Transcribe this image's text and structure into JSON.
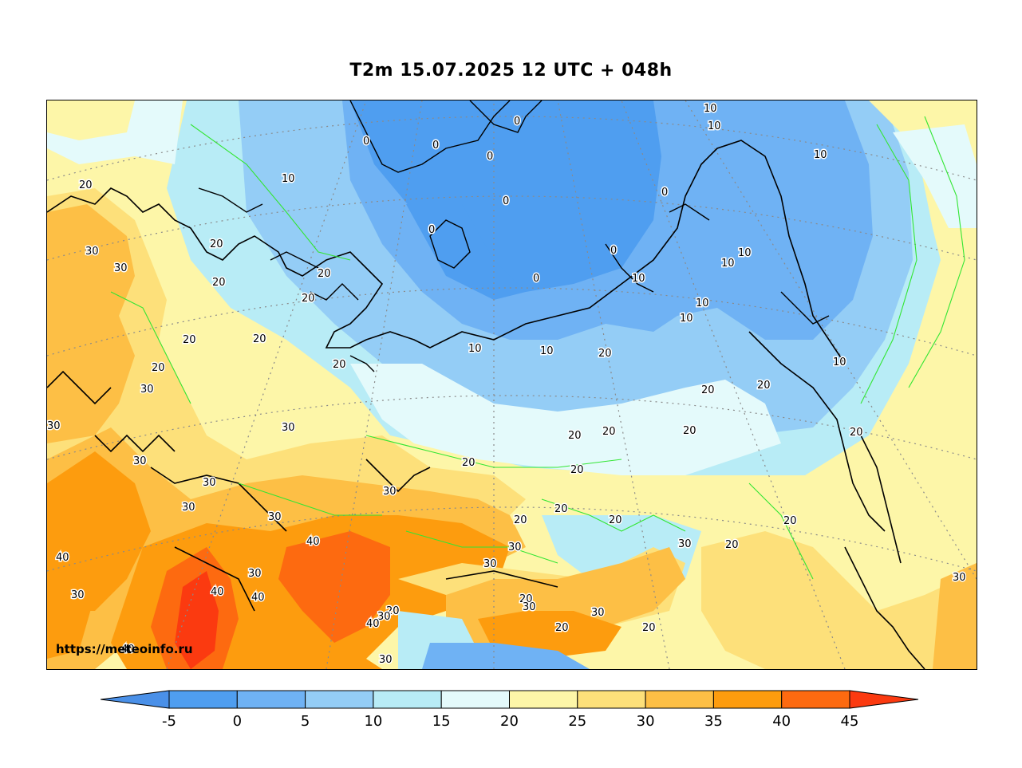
{
  "title": "T2m 15.07.2025 12 UTC + 048h",
  "watermark": "https://meteoinfo.ru",
  "legend": {
    "ticks": [
      "-5",
      "0",
      "5",
      "10",
      "15",
      "20",
      "25",
      "30",
      "35",
      "40",
      "45"
    ],
    "colors": [
      "#4a90e8",
      "#4f9ef0",
      "#6fb2f4",
      "#94cdf6",
      "#b8ecf6",
      "#e4fafb",
      "#fdf6a8",
      "#fde07a",
      "#fdbf45",
      "#fd9c0e",
      "#fd6a10",
      "#fb3a10"
    ]
  },
  "contour_labels": [
    "0",
    "10",
    "20",
    "30",
    "40"
  ]
}
